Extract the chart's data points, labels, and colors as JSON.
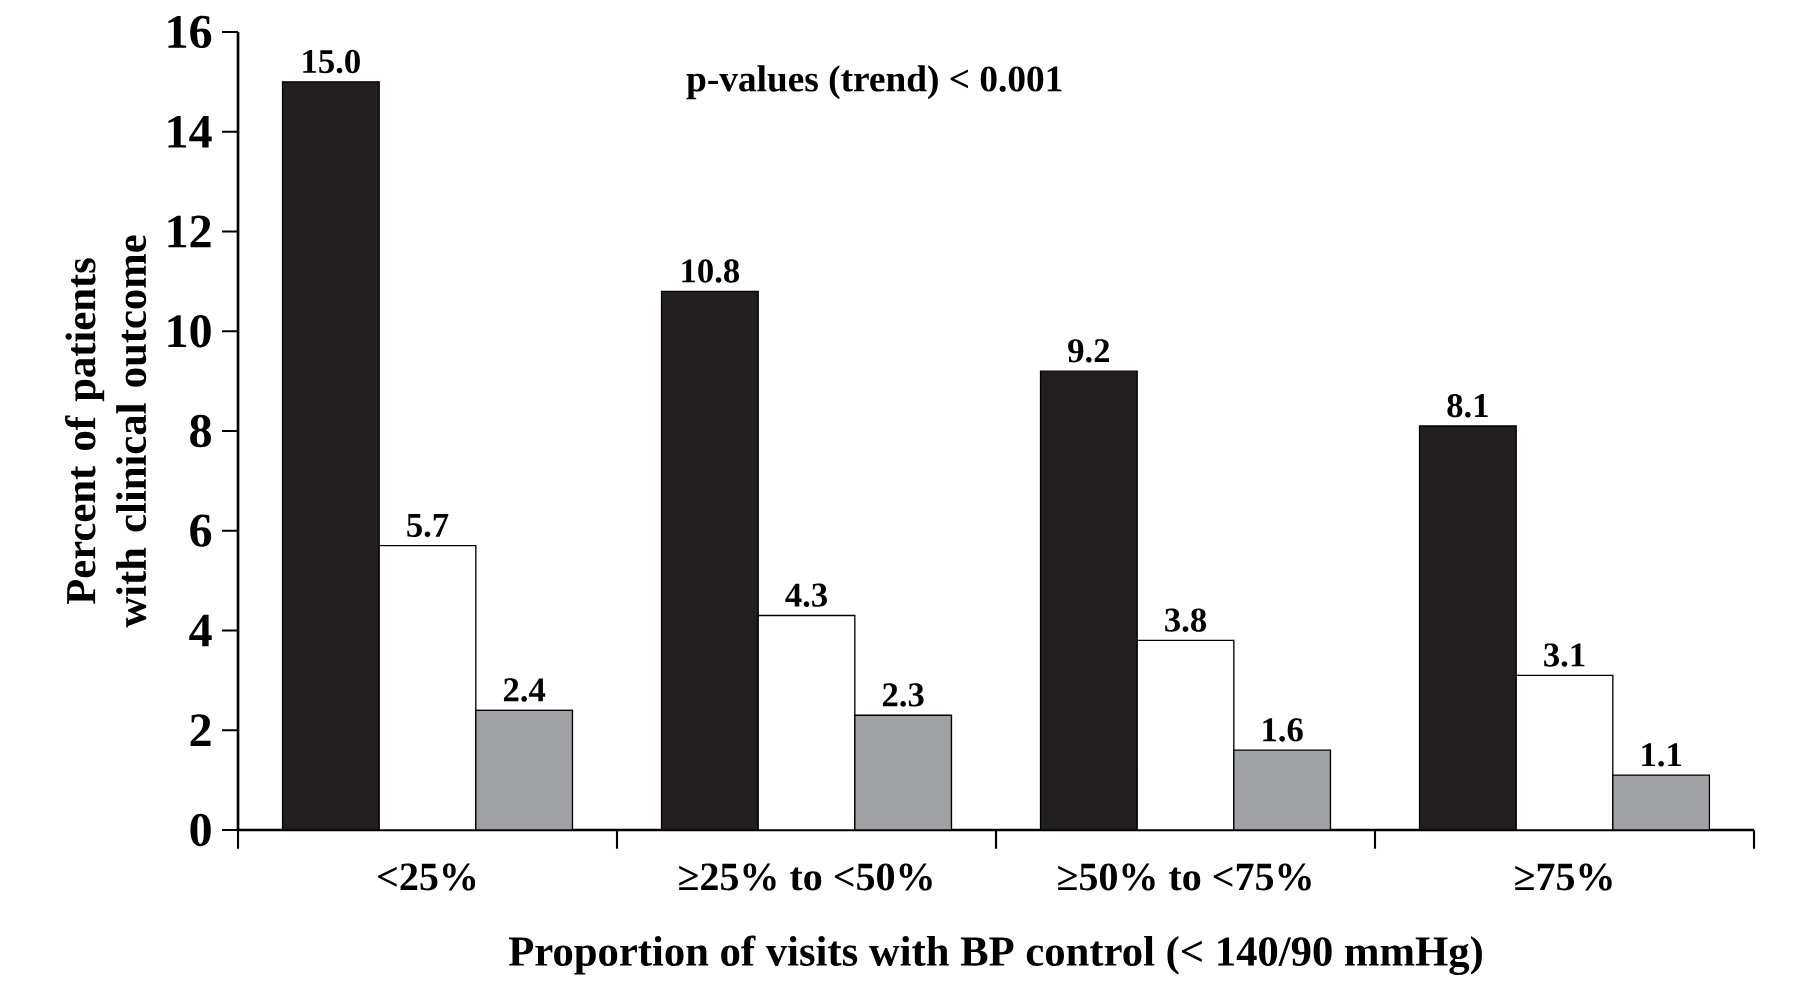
{
  "chart_data": {
    "type": "bar",
    "xlabel": "Proportion of visits with BP control (< 140/90 mmHg)",
    "ylabel": "Percent of patients with clinical outcome",
    "categories": [
      "<25%",
      "≥25% to <50%",
      "≥50% to <75%",
      "≥75%"
    ],
    "series": [
      {
        "color": "#231f20",
        "values": [
          15.0,
          10.8,
          9.2,
          8.1
        ],
        "value_labels": [
          "15.0",
          "10.8",
          "9.2",
          "8.1"
        ]
      },
      {
        "color": "#ffffff",
        "values": [
          5.7,
          4.3,
          3.8,
          3.1
        ],
        "value_labels": [
          "5.7",
          "4.3",
          "3.8",
          "3.1"
        ]
      },
      {
        "color": "#a0a1a4",
        "values": [
          2.4,
          2.3,
          1.6,
          1.1
        ],
        "value_labels": [
          "2.4",
          "2.3",
          "1.6",
          "1.1"
        ]
      }
    ],
    "ylim": [
      0,
      16
    ],
    "yticks": [
      0,
      2,
      4,
      6,
      8,
      10,
      12,
      14,
      16
    ],
    "grid": false,
    "annotations": [
      "p-values (trend) < 0.001"
    ]
  }
}
